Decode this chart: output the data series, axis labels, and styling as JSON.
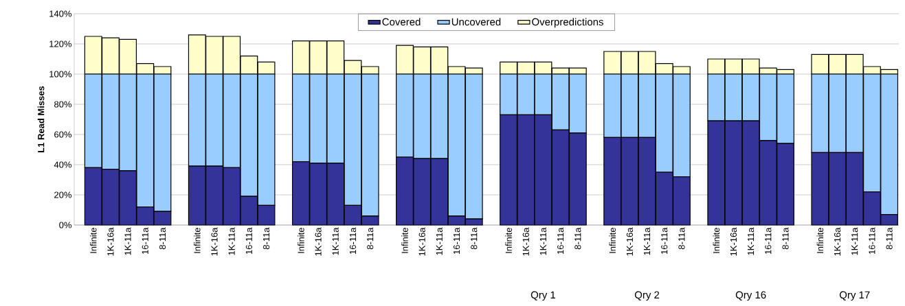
{
  "chart_data": {
    "type": "bar",
    "stacked": true,
    "ylabel": "L1 Read Misses",
    "categories": [
      "Infinite",
      "1K-16a",
      "1K-11a",
      "16-11a",
      "8-11a",
      "Infinite",
      "1K-16a",
      "1K-11a",
      "16-11a",
      "8-11a",
      "Infinite",
      "1K-16a",
      "1K-11a",
      "16-11a",
      "8-11a",
      "Infinite",
      "1K-16a",
      "1K-11a",
      "16-11a",
      "8-11a",
      "Infinite",
      "1K-16a",
      "1K-11a",
      "16-11a",
      "8-11a",
      "Infinite",
      "1K-16a",
      "1K-11a",
      "16-11a",
      "8-11a",
      "Infinite",
      "1K-16a",
      "1K-11a",
      "16-11a",
      "8-11a",
      "Infinite",
      "1K-16a",
      "1K-11a",
      "16-11a",
      "8-11a"
    ],
    "series": [
      {
        "name": "Covered",
        "color": "#333399",
        "values": [
          38,
          37,
          36,
          12,
          9,
          39,
          39,
          38,
          19,
          13,
          42,
          41,
          41,
          13,
          6,
          45,
          44,
          44,
          6,
          4,
          73,
          73,
          73,
          63,
          61,
          58,
          58,
          58,
          35,
          32,
          69,
          69,
          69,
          56,
          54,
          48,
          48,
          48,
          22,
          7
        ]
      },
      {
        "name": "Uncovered",
        "color": "#99ccff",
        "values": [
          62,
          63,
          64,
          88,
          91,
          61,
          61,
          62,
          81,
          87,
          58,
          59,
          59,
          87,
          94,
          55,
          56,
          56,
          94,
          96,
          27,
          27,
          27,
          37,
          39,
          42,
          42,
          42,
          65,
          68,
          31,
          31,
          31,
          44,
          46,
          52,
          52,
          52,
          78,
          93
        ]
      },
      {
        "name": "Overpredictions",
        "color": "#ffffcc",
        "values": [
          25,
          24,
          23,
          7,
          5,
          26,
          25,
          25,
          12,
          8,
          22,
          22,
          22,
          9,
          5,
          19,
          18,
          18,
          5,
          4,
          8,
          8,
          8,
          4,
          4,
          15,
          15,
          15,
          7,
          5,
          10,
          10,
          10,
          4,
          3,
          13,
          13,
          13,
          5,
          3
        ]
      }
    ],
    "ylim": [
      0,
      140
    ],
    "yticks": [
      {
        "value": 0,
        "label": "0%"
      },
      {
        "value": 20,
        "label": "20%"
      },
      {
        "value": 40,
        "label": "40%"
      },
      {
        "value": 60,
        "label": "60%"
      },
      {
        "value": 80,
        "label": "80%"
      },
      {
        "value": 100,
        "label": "100%"
      },
      {
        "value": 120,
        "label": "120%"
      },
      {
        "value": 140,
        "label": "140%"
      }
    ],
    "grid": "y",
    "legend": "top",
    "annotations": [
      "Qry 1",
      "Qry 2",
      "Qry 16",
      "Qry 17"
    ]
  }
}
